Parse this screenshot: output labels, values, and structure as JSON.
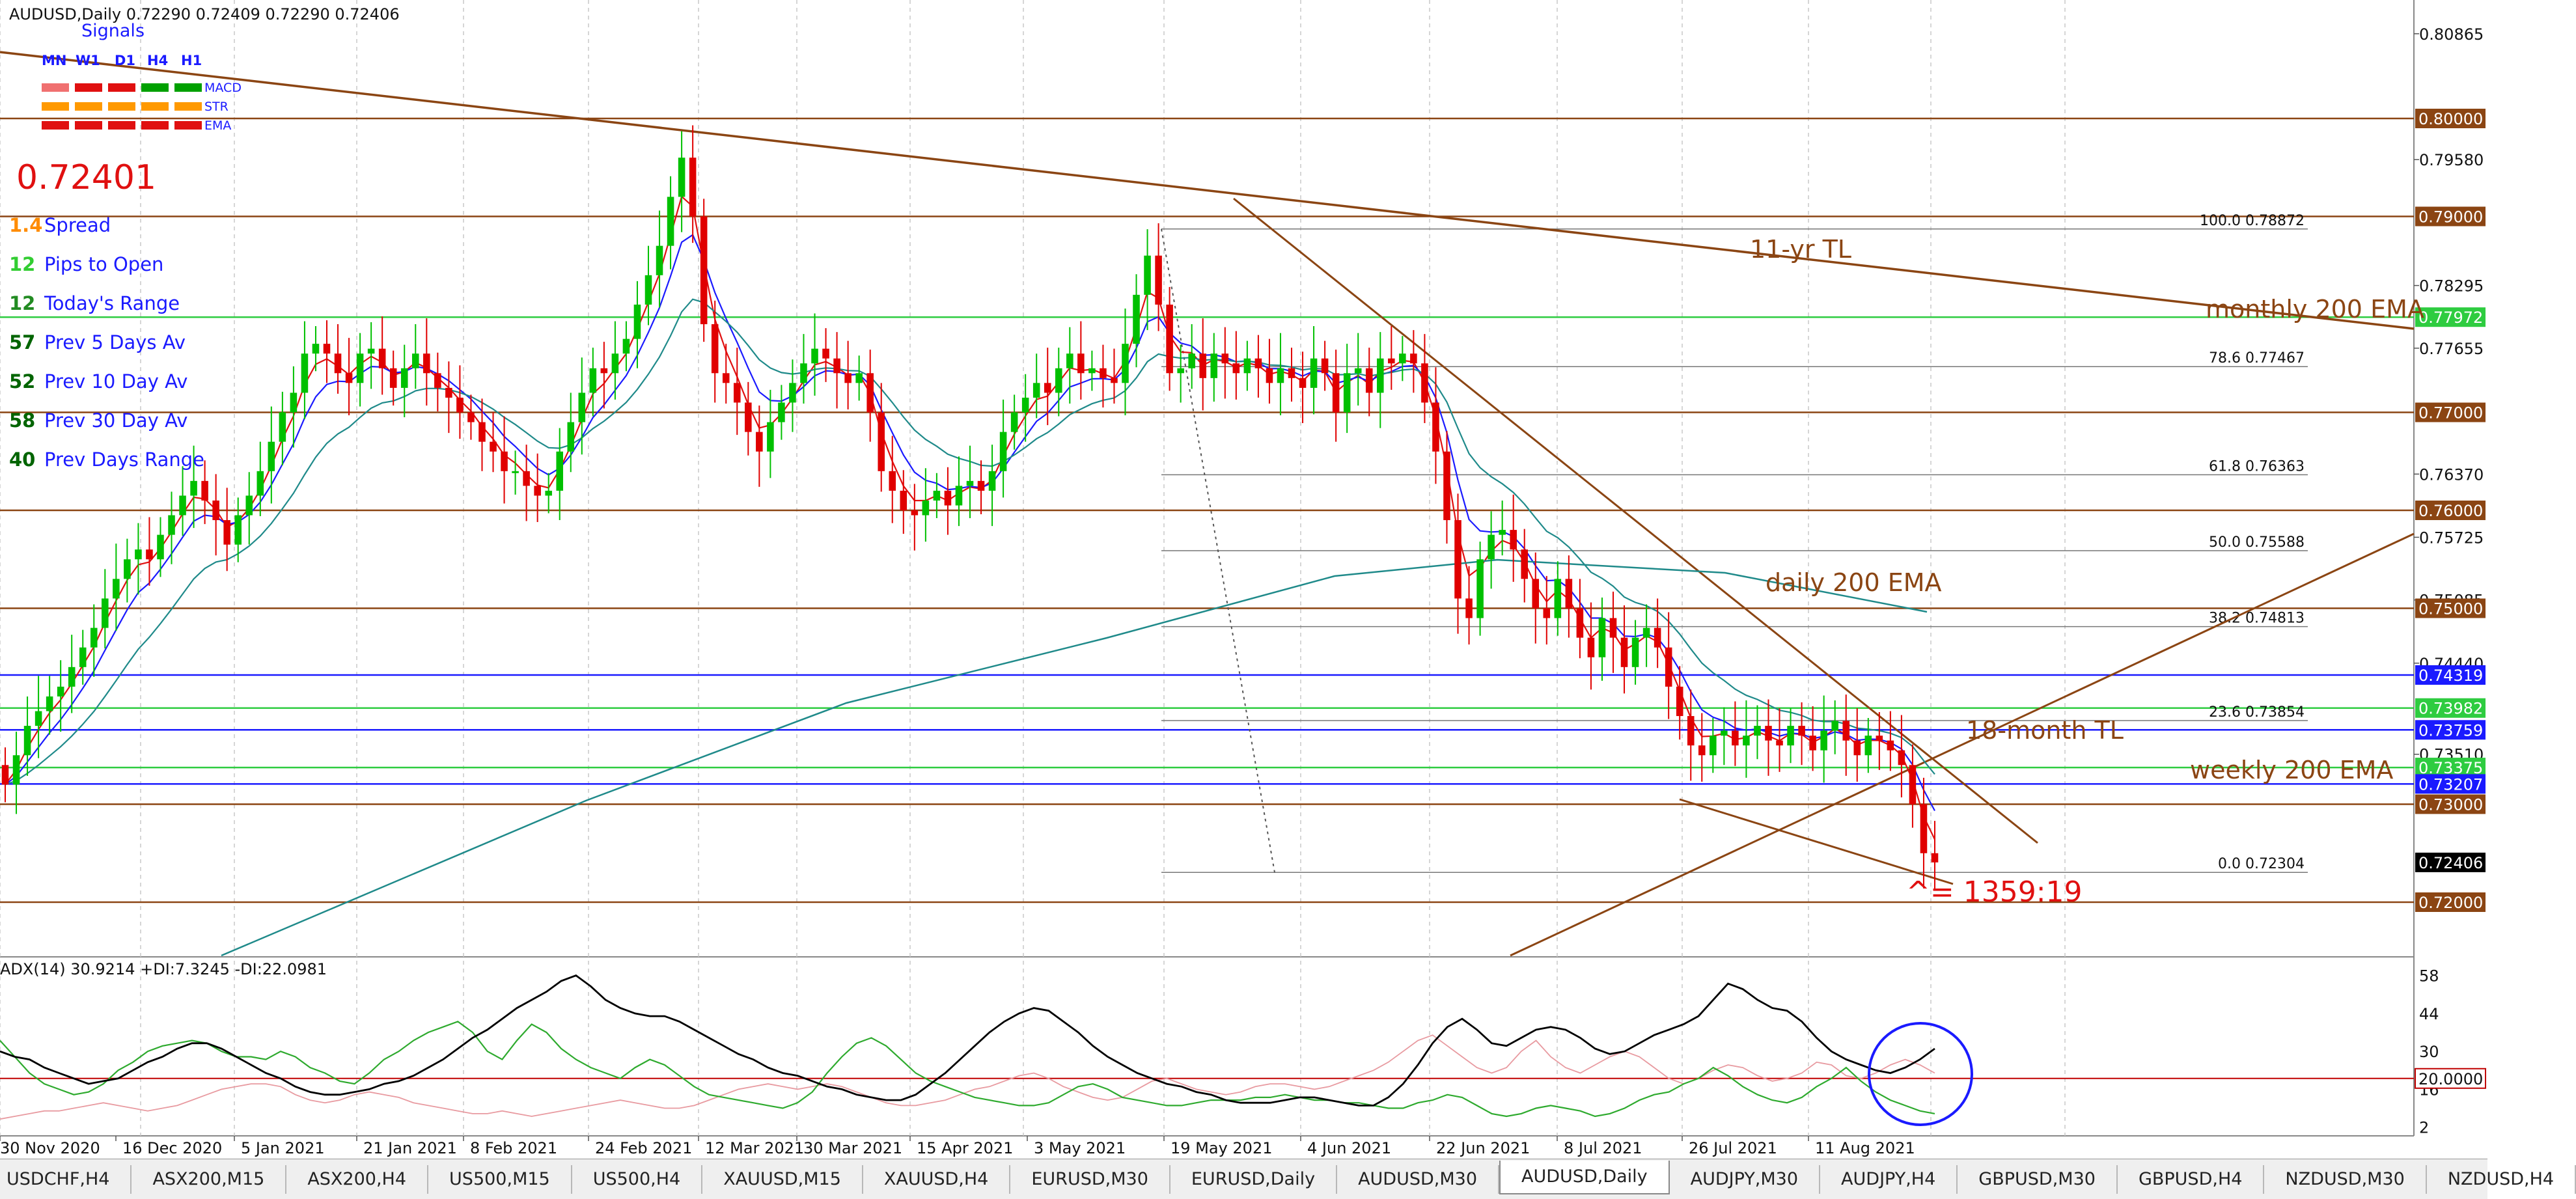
{
  "window": {
    "symbol_header": "AUDUSD,Daily  0.72290 0.72409 0.72290 0.72406"
  },
  "signals": {
    "title": "Signals",
    "timeframes": [
      "MN",
      "W1",
      "D1",
      "H4",
      "H1"
    ],
    "rows": [
      {
        "label": "MACD",
        "colors": [
          "#f07070",
          "#e01010",
          "#e01010",
          "#00a000",
          "#00a000"
        ]
      },
      {
        "label": "STR",
        "colors": [
          "#ff9900",
          "#ff9900",
          "#ff9900",
          "#ff9900",
          "#ff9900"
        ]
      },
      {
        "label": "EMA",
        "colors": [
          "#e01010",
          "#e01010",
          "#e01010",
          "#e01010",
          "#e01010"
        ]
      }
    ]
  },
  "info": {
    "price": "0.72401",
    "stats": [
      {
        "value": "1.4",
        "label": "Spread",
        "value_color": "#ff8c00"
      },
      {
        "value": "12",
        "label": "Pips to Open",
        "value_color": "#32cd32"
      },
      {
        "value": "12",
        "label": "Today's Range",
        "value_color": "#228b22"
      },
      {
        "value": "57",
        "label": "Prev 5 Days Av",
        "value_color": "#006400"
      },
      {
        "value": "52",
        "label": "Prev 10 Day Av",
        "value_color": "#006400"
      },
      {
        "value": "58",
        "label": "Prev 30 Day Av",
        "value_color": "#006400"
      },
      {
        "value": "40",
        "label": "Prev Days Range",
        "value_color": "#006400"
      }
    ]
  },
  "annotations": {
    "tl_11yr": "11-yr TL",
    "monthly_ema": "monthly 200 EMA",
    "daily_ema": "daily 200 EMA",
    "tl_18m": "18-month TL",
    "weekly_ema": "weekly 200 EMA",
    "ratio": "^= 1359:19"
  },
  "fib": [
    {
      "label": "100.0  0.78872",
      "price": 0.78872
    },
    {
      "label": "78.6  0.77467",
      "price": 0.77467
    },
    {
      "label": "61.8  0.76363",
      "price": 0.76363
    },
    {
      "label": "50.0  0.75588",
      "price": 0.75588
    },
    {
      "label": "38.2  0.74813",
      "price": 0.74813
    },
    {
      "label": "23.6  0.73854",
      "price": 0.73854
    },
    {
      "label": "0.0  0.72304",
      "price": 0.72304
    }
  ],
  "price_axis": {
    "min": 0.7138,
    "max": 0.811,
    "ticks": [
      {
        "label": "0.80865",
        "price": 0.80865
      },
      {
        "label": "0.79580",
        "price": 0.7958
      },
      {
        "label": "0.78295",
        "price": 0.78295
      },
      {
        "label": "0.77655",
        "price": 0.77655
      },
      {
        "label": "0.76370",
        "price": 0.7637
      },
      {
        "label": "0.75725",
        "price": 0.75725
      },
      {
        "label": "0.75085",
        "price": 0.75085
      },
      {
        "label": "0.74440",
        "price": 0.7444
      },
      {
        "label": "0.73510",
        "price": 0.7351
      }
    ],
    "boxes": [
      {
        "label": "0.80000",
        "price": 0.8,
        "bg": "#8b4513"
      },
      {
        "label": "0.79000",
        "price": 0.79,
        "bg": "#8b4513"
      },
      {
        "label": "0.77972",
        "price": 0.77972,
        "bg": "#2ecc40"
      },
      {
        "label": "0.77000",
        "price": 0.77,
        "bg": "#8b4513"
      },
      {
        "label": "0.76000",
        "price": 0.76,
        "bg": "#8b4513"
      },
      {
        "label": "0.75000",
        "price": 0.75,
        "bg": "#8b4513"
      },
      {
        "label": "0.74319",
        "price": 0.74319,
        "bg": "#1a1aff"
      },
      {
        "label": "0.73982",
        "price": 0.73982,
        "bg": "#2ecc40"
      },
      {
        "label": "0.73759",
        "price": 0.73759,
        "bg": "#1a1aff"
      },
      {
        "label": "0.73375",
        "price": 0.73375,
        "bg": "#2ecc40"
      },
      {
        "label": "0.73207",
        "price": 0.73207,
        "bg": "#1a1aff"
      },
      {
        "label": "0.73000",
        "price": 0.73,
        "bg": "#8b4513"
      },
      {
        "label": "0.72406",
        "price": 0.72406,
        "bg": "#000000"
      },
      {
        "label": "0.72000",
        "price": 0.72,
        "bg": "#8b4513"
      }
    ]
  },
  "horizontal_levels": [
    {
      "price": 0.8,
      "color": "#8b4513"
    },
    {
      "price": 0.79,
      "color": "#8b4513"
    },
    {
      "price": 0.77972,
      "color": "#2ecc40"
    },
    {
      "price": 0.77,
      "color": "#8b4513"
    },
    {
      "price": 0.76,
      "color": "#8b4513"
    },
    {
      "price": 0.75,
      "color": "#8b4513"
    },
    {
      "price": 0.74319,
      "color": "#1a1aff"
    },
    {
      "price": 0.73982,
      "color": "#2ecc40"
    },
    {
      "price": 0.73759,
      "color": "#1a1aff"
    },
    {
      "price": 0.73375,
      "color": "#2ecc40"
    },
    {
      "price": 0.73207,
      "color": "#1a1aff"
    },
    {
      "price": 0.73,
      "color": "#8b4513"
    },
    {
      "price": 0.72,
      "color": "#8b4513"
    }
  ],
  "date_axis": {
    "labels": [
      "30 Nov 2020",
      "16 Dec 2020",
      "5 Jan 2021",
      "21 Jan 2021",
      "8 Feb 2021",
      "24 Feb 2021",
      "12 Mar 2021",
      "30 Mar 2021",
      "15 Apr 2021",
      "3 May 2021",
      "19 May 2021",
      "4 Jun 2021",
      "22 Jun 2021",
      "8 Jul 2021",
      "26 Jul 2021",
      "11 Aug 2021"
    ]
  },
  "adx": {
    "header": "ADX(14) 30.9214 +DI:7.3245 -DI:22.0981",
    "min": 0,
    "max": 62,
    "ticks": [
      {
        "label": "58",
        "v": 58
      },
      {
        "label": "44",
        "v": 44
      },
      {
        "label": "30",
        "v": 30
      },
      {
        "label": "16",
        "v": 16
      },
      {
        "label": "2",
        "v": 2
      }
    ],
    "level_label": "20.0000",
    "level": 20,
    "adx_line": [
      30,
      28,
      27,
      24,
      22,
      20,
      18,
      19,
      20,
      23,
      26,
      28,
      31,
      33,
      33,
      31,
      28,
      25,
      22,
      20,
      17,
      15,
      14,
      14,
      15,
      16,
      18,
      19,
      21,
      24,
      27,
      31,
      35,
      38,
      42,
      46,
      49,
      52,
      56,
      58,
      54,
      49,
      46,
      44,
      43,
      43,
      41,
      38,
      35,
      32,
      29,
      27,
      24,
      22,
      21,
      19,
      17,
      16,
      14,
      13,
      12,
      12,
      14,
      18,
      22,
      27,
      32,
      37,
      41,
      44,
      46,
      45,
      41,
      37,
      32,
      28,
      25,
      22,
      20,
      18,
      17,
      15,
      14,
      12,
      11,
      11,
      11,
      12,
      13,
      13,
      12,
      11,
      10,
      10,
      13,
      18,
      25,
      33,
      39,
      42,
      38,
      33,
      32,
      35,
      38,
      39,
      38,
      35,
      31,
      29,
      30,
      33,
      36,
      38,
      40,
      43,
      49,
      55,
      53,
      49,
      46,
      45,
      41,
      35,
      30,
      27,
      25,
      23,
      22,
      24,
      27,
      31
    ],
    "plus_di": [
      34,
      28,
      22,
      18,
      16,
      14,
      15,
      18,
      23,
      26,
      30,
      32,
      33,
      34,
      33,
      30,
      28,
      28,
      27,
      30,
      28,
      24,
      22,
      19,
      18,
      22,
      27,
      30,
      34,
      37,
      39,
      41,
      37,
      30,
      27,
      34,
      40,
      37,
      31,
      27,
      24,
      22,
      20,
      24,
      27,
      25,
      21,
      17,
      14,
      13,
      12,
      11,
      10,
      9,
      11,
      15,
      22,
      28,
      33,
      35,
      32,
      27,
      22,
      19,
      17,
      15,
      13,
      12,
      11,
      10,
      10,
      11,
      14,
      17,
      18,
      16,
      13,
      12,
      11,
      10,
      10,
      11,
      12,
      12,
      12,
      13,
      13,
      14,
      13,
      12,
      12,
      11,
      11,
      10,
      9,
      9,
      11,
      12,
      14,
      13,
      10,
      7,
      6,
      7,
      9,
      10,
      9,
      8,
      6,
      7,
      9,
      12,
      14,
      15,
      18,
      20,
      24,
      21,
      17,
      14,
      12,
      11,
      13,
      17,
      20,
      24,
      19,
      15,
      12,
      10,
      8,
      7
    ],
    "minus_di": [
      5,
      6,
      7,
      8,
      8,
      9,
      10,
      11,
      10,
      9,
      8,
      9,
      10,
      12,
      14,
      16,
      17,
      18,
      18,
      17,
      14,
      12,
      11,
      12,
      14,
      15,
      14,
      13,
      11,
      10,
      9,
      8,
      7,
      7,
      8,
      7,
      6,
      7,
      8,
      9,
      10,
      11,
      12,
      11,
      10,
      9,
      9,
      10,
      12,
      14,
      16,
      17,
      18,
      17,
      16,
      17,
      18,
      17,
      15,
      13,
      11,
      10,
      10,
      11,
      12,
      14,
      16,
      17,
      19,
      21,
      22,
      20,
      17,
      15,
      13,
      12,
      13,
      16,
      19,
      20,
      18,
      16,
      15,
      14,
      15,
      17,
      18,
      18,
      17,
      16,
      17,
      19,
      21,
      23,
      26,
      30,
      34,
      36,
      32,
      28,
      24,
      22,
      24,
      30,
      34,
      28,
      24,
      22,
      25,
      28,
      30,
      28,
      24,
      20,
      18,
      20,
      23,
      25,
      24,
      21,
      19,
      20,
      22,
      26,
      25,
      21,
      20,
      22,
      25,
      27,
      25,
      22
    ]
  },
  "tabs": [
    {
      "label": "USDCHF,H4",
      "active": false
    },
    {
      "label": "ASX200,M15",
      "active": false
    },
    {
      "label": "ASX200,H4",
      "active": false
    },
    {
      "label": "US500,M15",
      "active": false
    },
    {
      "label": "US500,H4",
      "active": false
    },
    {
      "label": "XAUUSD,M15",
      "active": false
    },
    {
      "label": "XAUUSD,H4",
      "active": false
    },
    {
      "label": "EURUSD,M30",
      "active": false
    },
    {
      "label": "EURUSD,Daily",
      "active": false
    },
    {
      "label": "AUDUSD,M30",
      "active": false
    },
    {
      "label": "AUDUSD,Daily",
      "active": true
    },
    {
      "label": "AUDJPY,M30",
      "active": false
    },
    {
      "label": "AUDJPY,H4",
      "active": false
    },
    {
      "label": "GBPUSD,M30",
      "active": false
    },
    {
      "label": "GBPUSD,H4",
      "active": false
    },
    {
      "label": "NZDUSD,M30",
      "active": false
    },
    {
      "label": "NZDUSD,H4",
      "active": false
    }
  ],
  "chart_data": {
    "type": "candlestick",
    "symbol": "AUDUSD",
    "timeframe": "Daily",
    "last_close": 0.72406,
    "closes": [
      0.732,
      0.735,
      0.738,
      0.7395,
      0.741,
      0.742,
      0.744,
      0.746,
      0.748,
      0.751,
      0.753,
      0.755,
      0.756,
      0.755,
      0.7575,
      0.7595,
      0.7615,
      0.763,
      0.761,
      0.759,
      0.7565,
      0.7595,
      0.7615,
      0.764,
      0.767,
      0.77,
      0.772,
      0.776,
      0.777,
      0.776,
      0.774,
      0.773,
      0.776,
      0.7765,
      0.7745,
      0.7725,
      0.7745,
      0.776,
      0.774,
      0.7725,
      0.7715,
      0.77,
      0.769,
      0.767,
      0.766,
      0.764,
      0.764,
      0.7625,
      0.7615,
      0.762,
      0.766,
      0.769,
      0.772,
      0.7745,
      0.774,
      0.776,
      0.7775,
      0.781,
      0.784,
      0.787,
      0.792,
      0.796,
      0.79,
      0.779,
      0.774,
      0.773,
      0.771,
      0.768,
      0.766,
      0.769,
      0.771,
      0.773,
      0.775,
      0.7765,
      0.7755,
      0.774,
      0.773,
      0.774,
      0.77,
      0.764,
      0.762,
      0.76,
      0.7595,
      0.761,
      0.762,
      0.7605,
      0.7625,
      0.763,
      0.762,
      0.764,
      0.768,
      0.77,
      0.7715,
      0.773,
      0.772,
      0.7745,
      0.776,
      0.774,
      0.7745,
      0.7735,
      0.773,
      0.777,
      0.782,
      0.786,
      0.781,
      0.774,
      0.7745,
      0.776,
      0.7735,
      0.776,
      0.775,
      0.774,
      0.7755,
      0.7745,
      0.773,
      0.7745,
      0.7735,
      0.7725,
      0.7755,
      0.774,
      0.77,
      0.774,
      0.7745,
      0.772,
      0.7755,
      0.775,
      0.776,
      0.775,
      0.771,
      0.766,
      0.759,
      0.751,
      0.749,
      0.755,
      0.7575,
      0.758,
      0.756,
      0.753,
      0.75,
      0.749,
      0.753,
      0.75,
      0.747,
      0.745,
      0.749,
      0.747,
      0.744,
      0.747,
      0.748,
      0.746,
      0.742,
      0.739,
      0.736,
      0.735,
      0.737,
      0.7375,
      0.736,
      0.737,
      0.738,
      0.7365,
      0.736,
      0.738,
      0.737,
      0.7355,
      0.7375,
      0.7385,
      0.7365,
      0.735,
      0.737,
      0.7365,
      0.7355,
      0.734,
      0.73,
      0.725,
      0.72406
    ]
  }
}
